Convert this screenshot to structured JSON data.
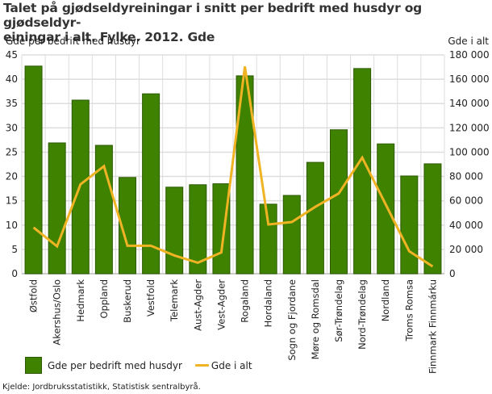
{
  "title": "Talet på gjødseldyreiningar i snitt per bedrift med husdyr og gjødseldyr-einingar i alt. Fylke. 2012. Gde",
  "title_lines": [
    "Talet på gjødseldyreiningar i snitt per bedrift med husdyr og gjødseldyr-",
    "einingar i alt. Fylke. 2012. Gde"
  ],
  "axis_left_title": "Gde per bedrift med husdyr",
  "axis_right_title": "Gde i alt",
  "legend": {
    "bar_label": "Gde per bedrift med husdyr",
    "line_label": "Gde i alt"
  },
  "source": "Kjelde: Jordbruksstatistikk, Statistisk sentralbyrå.",
  "colors": {
    "bar": "#3f8200",
    "bar_border": "#2c5a00",
    "line": "#f0b323",
    "grid": "#dddddd"
  },
  "chart_data": {
    "type": "bar+line",
    "title": "Talet på gjødseldyreiningar i snitt per bedrift med husdyr og gjødseldyr-einingar i alt. Fylke. 2012. Gde",
    "categories": [
      "Østfold",
      "Akershus/Oslo",
      "Hedmark",
      "Oppland",
      "Buskerud",
      "Vestfold",
      "Telemark",
      "Aust-Agder",
      "Vest-Agder",
      "Rogaland",
      "Hordaland",
      "Sogn og Fjordane",
      "Møre og Romsdal",
      "Sør-Trøndelag",
      "Nord-Trøndelag",
      "Nordland",
      "Troms Romsa",
      "Finnmark Finnmárku"
    ],
    "series": [
      {
        "name": "Gde per bedrift med husdyr",
        "type": "bar",
        "axis": "left",
        "values": [
          42.7,
          26.9,
          35.7,
          26.4,
          19.8,
          37.0,
          17.8,
          18.3,
          18.5,
          40.7,
          14.3,
          16.1,
          22.9,
          29.6,
          42.2,
          26.7,
          20.1,
          22.6
        ]
      },
      {
        "name": "Gde i alt",
        "type": "line",
        "axis": "right",
        "values": [
          38000,
          22500,
          73500,
          88500,
          23000,
          23000,
          15000,
          9000,
          17500,
          170500,
          40500,
          42500,
          55000,
          66000,
          95500,
          57000,
          18500,
          6000
        ]
      }
    ],
    "ylabel": "Gde per bedrift med husdyr",
    "ylabel_right": "Gde i alt",
    "ylim": [
      0,
      45
    ],
    "ylim_right": [
      0,
      180000
    ],
    "yticks": [
      "0",
      "5",
      "10",
      "15",
      "20",
      "25",
      "30",
      "35",
      "40",
      "45"
    ],
    "yticks_right": [
      "0",
      "20 000",
      "40 000",
      "60 000",
      "80 000",
      "100 000",
      "120 000",
      "140 000",
      "160 000",
      "180 000"
    ],
    "grid": true,
    "legend_position": "bottom"
  }
}
